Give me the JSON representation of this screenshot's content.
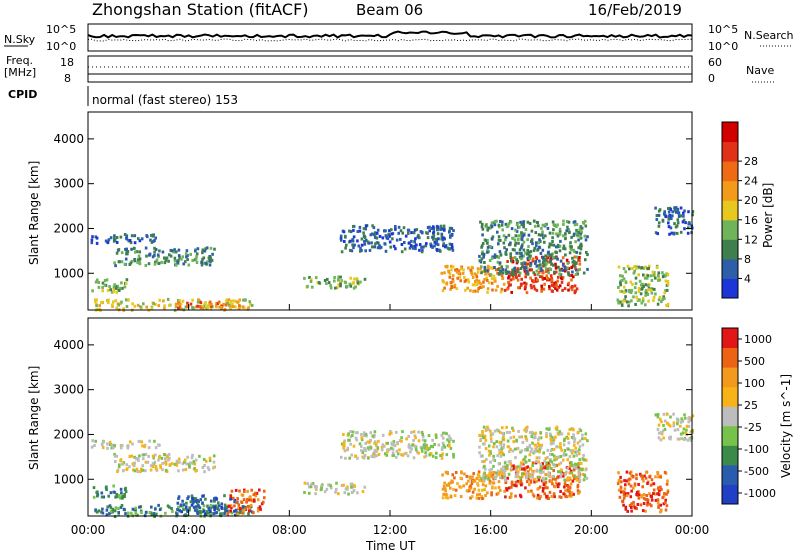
{
  "header": {
    "station": "Zhongshan Station (fitACF)",
    "beam": "Beam 06",
    "date": "16/Feb/2019"
  },
  "top_panels": {
    "nsky_label": "N.Sky",
    "nsky_ticks": [
      "10^5",
      "10^0"
    ],
    "nsearch_label": "N.Search",
    "nsearch_ticks": [
      "10^5",
      "10^0"
    ],
    "freq_label_line1": "Freq.",
    "freq_label_line2": "[MHz]",
    "freq_ticks": [
      "18",
      "8"
    ],
    "nave_label": "Nave",
    "nave_ticks": [
      "60",
      "0"
    ],
    "cpid_label": "CPID",
    "cpid_text": "normal (fast stereo) 153"
  },
  "chart_data": [
    {
      "type": "heatmap",
      "name": "power",
      "ylabel": "Slant Range [km]",
      "ylim": [
        180,
        4600
      ],
      "yticks": [
        "1000",
        "2000",
        "3000",
        "4000"
      ],
      "colorbar_label": "Power [dB]",
      "colorbar_ticks": [
        "4",
        "8",
        "12",
        "16",
        "20",
        "24",
        "28"
      ],
      "colors": [
        "#1c35d8",
        "#2c5fa8",
        "#3f7f4d",
        "#6fb45b",
        "#e8c81f",
        "#f29a1a",
        "#ef6a14",
        "#e03216",
        "#d00000"
      ],
      "xticks": [
        "00:00",
        "04:00",
        "08:00",
        "12:00",
        "16:00",
        "20:00",
        "00:00"
      ],
      "xlim_hours": [
        0,
        24
      ],
      "scatter_regions": [
        {
          "t0": 0.1,
          "t1": 2.8,
          "r0": 1700,
          "r1": 1900,
          "level": 1
        },
        {
          "t0": 1.0,
          "t1": 5.0,
          "r0": 1200,
          "r1": 1600,
          "level": 2
        },
        {
          "t0": 0.1,
          "t1": 1.5,
          "r0": 600,
          "r1": 900,
          "level": 3
        },
        {
          "t0": 0.2,
          "t1": 6.5,
          "r0": 200,
          "r1": 450,
          "level": 4
        },
        {
          "t0": 3.5,
          "t1": 6.0,
          "r0": 250,
          "r1": 400,
          "level": 6
        },
        {
          "t0": 8.5,
          "t1": 11.0,
          "r0": 700,
          "r1": 950,
          "level": 3
        },
        {
          "t0": 10.0,
          "t1": 14.5,
          "r0": 1500,
          "r1": 2100,
          "level": 1
        },
        {
          "t0": 14.0,
          "t1": 16.5,
          "r0": 600,
          "r1": 1200,
          "level": 5
        },
        {
          "t0": 16.5,
          "t1": 19.5,
          "r0": 600,
          "r1": 1400,
          "level": 7
        },
        {
          "t0": 15.5,
          "t1": 19.8,
          "r0": 1000,
          "r1": 2200,
          "level": 2
        },
        {
          "t0": 21.0,
          "t1": 23.0,
          "r0": 300,
          "r1": 1200,
          "level": 3
        },
        {
          "t0": 22.5,
          "t1": 24.0,
          "r0": 1900,
          "r1": 2500,
          "level": 1
        }
      ]
    },
    {
      "type": "heatmap",
      "name": "velocity",
      "ylabel": "Slant Range [km]",
      "ylim": [
        180,
        4600
      ],
      "yticks": [
        "1000",
        "2000",
        "3000",
        "4000"
      ],
      "colorbar_label": "Velocity [m s^-1]",
      "colorbar_ticks": [
        "1000",
        "500",
        "100",
        "25",
        "-25",
        "-100",
        "-500",
        "-1000"
      ],
      "colors": [
        "#1f3fc6",
        "#2a5cae",
        "#3c8a4a",
        "#77c24a",
        "#bdbdbd",
        "#f7b318",
        "#f39a1d",
        "#ec6413",
        "#e21616"
      ],
      "xticks": [
        "00:00",
        "04:00",
        "08:00",
        "12:00",
        "16:00",
        "20:00",
        "00:00"
      ],
      "xlabel": "Time UT",
      "xlim_hours": [
        0,
        24
      ],
      "scatter_regions": [
        {
          "t0": 0.1,
          "t1": 2.8,
          "r0": 1700,
          "r1": 1900,
          "level": 4
        },
        {
          "t0": 1.0,
          "t1": 5.0,
          "r0": 1200,
          "r1": 1600,
          "level": 4
        },
        {
          "t0": 0.1,
          "t1": 1.5,
          "r0": 600,
          "r1": 900,
          "level": 2
        },
        {
          "t0": 0.2,
          "t1": 6.5,
          "r0": 200,
          "r1": 450,
          "level": 2
        },
        {
          "t0": 3.5,
          "t1": 6.0,
          "r0": 250,
          "r1": 700,
          "level": 1
        },
        {
          "t0": 5.5,
          "t1": 7.0,
          "r0": 250,
          "r1": 800,
          "level": 7
        },
        {
          "t0": 8.5,
          "t1": 11.0,
          "r0": 700,
          "r1": 950,
          "level": 4
        },
        {
          "t0": 10.0,
          "t1": 14.5,
          "r0": 1500,
          "r1": 2100,
          "level": 4
        },
        {
          "t0": 14.0,
          "t1": 16.5,
          "r0": 600,
          "r1": 1200,
          "level": 6
        },
        {
          "t0": 16.5,
          "t1": 19.5,
          "r0": 600,
          "r1": 1400,
          "level": 7
        },
        {
          "t0": 15.5,
          "t1": 19.8,
          "r0": 1000,
          "r1": 2200,
          "level": 4
        },
        {
          "t0": 21.0,
          "t1": 23.0,
          "r0": 300,
          "r1": 1200,
          "level": 7
        },
        {
          "t0": 22.5,
          "t1": 24.0,
          "r0": 1900,
          "r1": 2500,
          "level": 4
        }
      ]
    }
  ]
}
